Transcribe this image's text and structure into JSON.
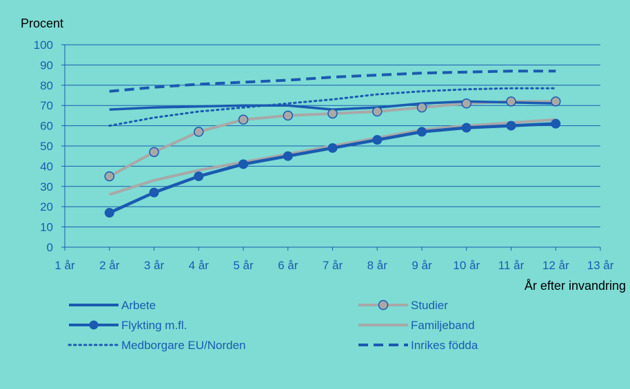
{
  "chart_data": {
    "type": "line",
    "ylabel": "Procent",
    "xlabel": "År efter invandring",
    "ylim": [
      0,
      100
    ],
    "yticks": [
      0,
      10,
      20,
      30,
      40,
      50,
      60,
      70,
      80,
      90,
      100
    ],
    "categories": [
      "1 år",
      "2 år",
      "3 år",
      "4 år",
      "5 år",
      "6 år",
      "7 år",
      "8 år",
      "9 år",
      "10 år",
      "11 år",
      "12 år",
      "13 år"
    ],
    "grid": "horizontal",
    "legend_position": "bottom",
    "series": [
      {
        "name": "Arbete",
        "style": "solid",
        "marker": "none",
        "color": "#1a5ab0",
        "values": [
          null,
          68,
          69,
          69.5,
          70,
          70,
          68,
          69,
          71,
          72,
          71.5,
          71,
          null
        ]
      },
      {
        "name": "Studier",
        "style": "solid",
        "marker": "circle",
        "color": "#a8a8a8",
        "marker_color": "#a8a8a8",
        "marker_stroke": "#1a5ab0",
        "values": [
          null,
          35,
          47,
          57,
          63,
          65,
          66,
          67,
          69,
          71,
          72,
          72,
          null
        ]
      },
      {
        "name": "Flykting m.fl.",
        "style": "solid",
        "marker": "dot",
        "color": "#1a5ab0",
        "values": [
          null,
          17,
          27,
          35,
          41,
          45,
          49,
          53,
          57,
          59,
          60,
          61,
          null
        ]
      },
      {
        "name": "Familjeband",
        "style": "solid",
        "marker": "none",
        "color": "#a8a8a8",
        "values": [
          null,
          26,
          33,
          38,
          42,
          46,
          50,
          54,
          58,
          60,
          61.5,
          63,
          null
        ]
      },
      {
        "name": "Medborgare EU/Norden",
        "style": "dotted",
        "marker": "none",
        "color": "#1a5ab0",
        "values": [
          null,
          60,
          64,
          67,
          69,
          71,
          73,
          75.5,
          77,
          78,
          78.5,
          78.5,
          null
        ]
      },
      {
        "name": "Inrikes födda",
        "style": "dashed",
        "marker": "none",
        "color": "#1a5ab0",
        "values": [
          null,
          77,
          79,
          80.5,
          81.5,
          82.5,
          84,
          85,
          86,
          86.5,
          87,
          87,
          null
        ]
      }
    ],
    "colors": {
      "background": "#7edcd4",
      "axis_text": "#1a5ab0",
      "grid": "#1a5ab0"
    }
  }
}
